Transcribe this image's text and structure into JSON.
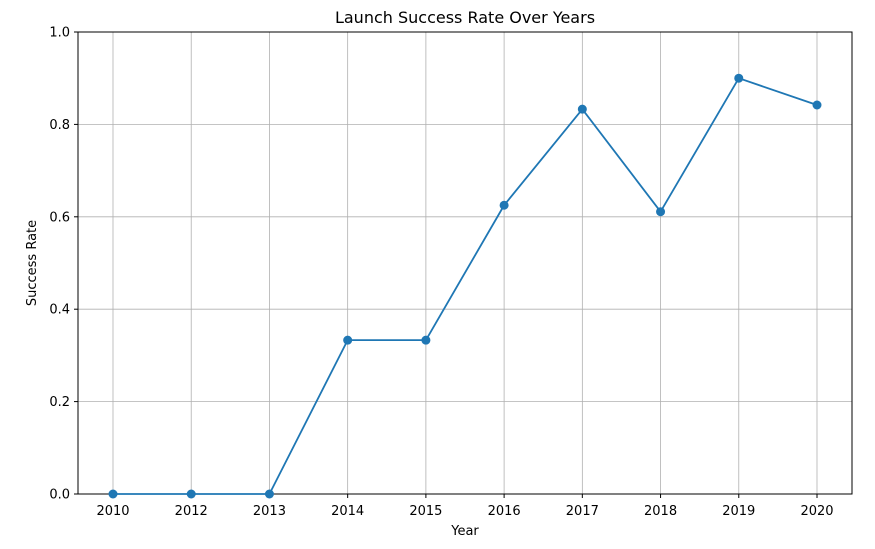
{
  "chart_data": {
    "type": "line",
    "title": "Launch Success Rate Over Years",
    "xlabel": "Year",
    "ylabel": "Success Rate",
    "categories": [
      "2010",
      "2012",
      "2013",
      "2014",
      "2015",
      "2016",
      "2017",
      "2018",
      "2019",
      "2020"
    ],
    "series": [
      {
        "values": [
          0.0,
          0.0,
          0.0,
          0.333,
          0.333,
          0.625,
          0.833,
          0.611,
          0.9,
          0.842
        ],
        "color": "#1f77b4",
        "marker": "circle"
      }
    ],
    "ylim": [
      0,
      1.0
    ],
    "yticks": [
      "0.0",
      "0.2",
      "0.4",
      "0.6",
      "0.8",
      "1.0"
    ],
    "grid": true
  }
}
